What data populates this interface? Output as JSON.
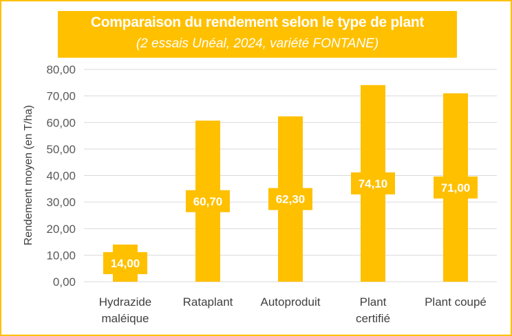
{
  "chart_data": {
    "type": "bar",
    "title": "Comparaison du rendement selon le type de plant",
    "subtitle": "(2 essais Unéal, 2024, variété FONTANE)",
    "ylabel": "Rendement moyen (en T/ha)",
    "xlabel": "",
    "categories": [
      [
        "Hydrazide",
        "maléique"
      ],
      [
        "Rataplant"
      ],
      [
        "Autoproduit"
      ],
      [
        "Plant",
        "certifié"
      ],
      [
        "Plant coupé"
      ]
    ],
    "values": [
      14.0,
      60.7,
      62.3,
      74.1,
      71.0
    ],
    "data_labels": [
      "14,00",
      "60,70",
      "62,30",
      "74,10",
      "71,00"
    ],
    "yticks": [
      "0,00",
      "10,00",
      "20,00",
      "30,00",
      "40,00",
      "50,00",
      "60,00",
      "70,00",
      "80,00"
    ],
    "ylim": [
      0,
      80
    ],
    "grid": true,
    "legend": "none",
    "colors": {
      "bar": "#FFC000",
      "label_box": "#FFC000",
      "grid": "#D9D9D9",
      "frame": "#FFC000"
    }
  }
}
